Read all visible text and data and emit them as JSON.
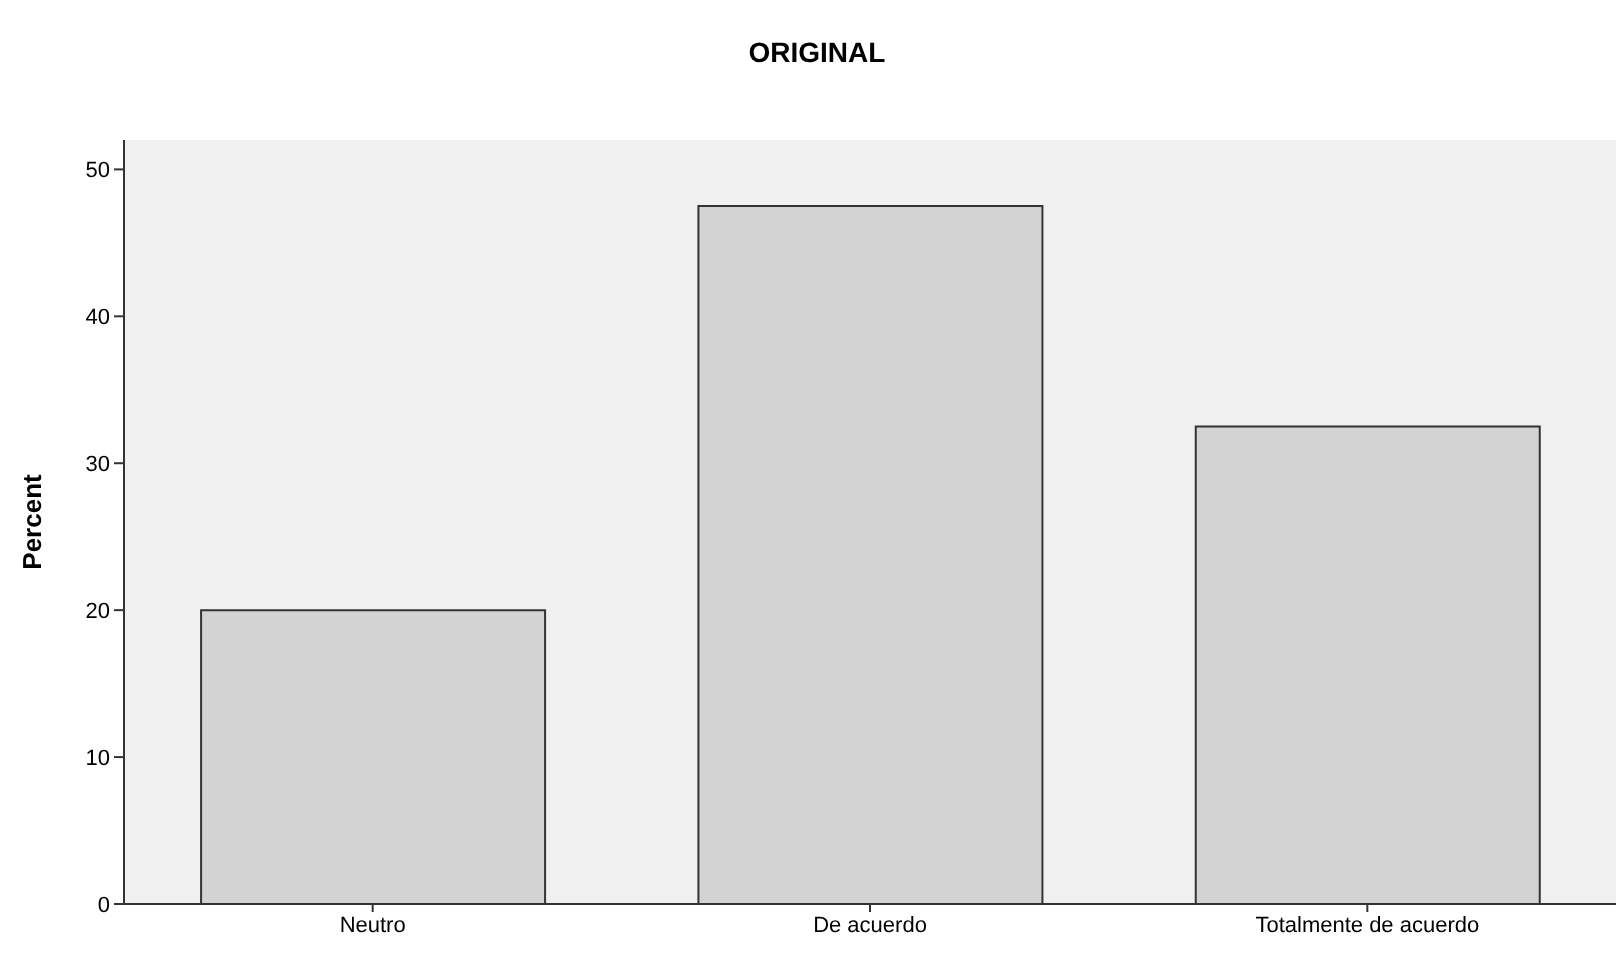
{
  "chart_data": {
    "type": "bar",
    "title": "ORIGINAL",
    "ylabel": "Percent",
    "categories": [
      "Neutro",
      "De acuerdo",
      "Totalmente de acuerdo"
    ],
    "values": [
      20,
      47.5,
      32.5
    ],
    "color": "#d3d3d3",
    "ylim": [
      0,
      52
    ],
    "yticks": [
      0,
      10,
      20,
      30,
      40,
      50
    ],
    "grid": false,
    "legend": false
  }
}
